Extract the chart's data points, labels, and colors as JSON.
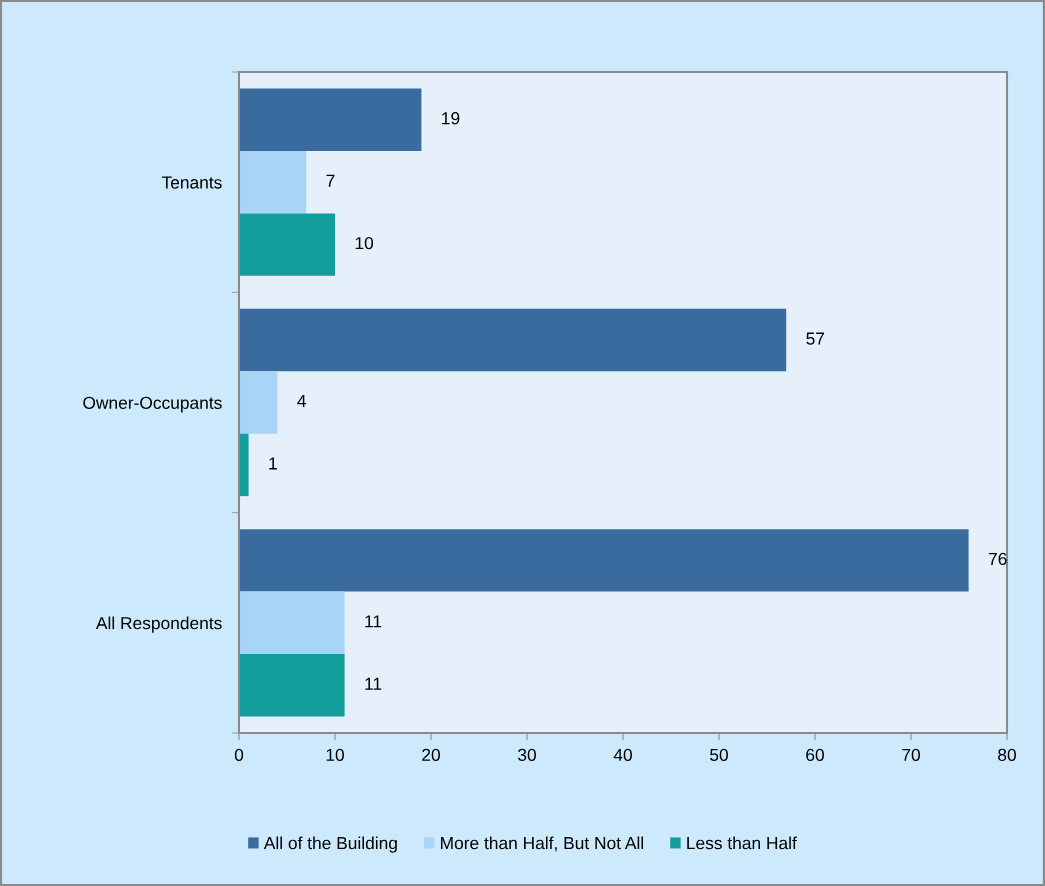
{
  "chart_data": {
    "type": "bar",
    "orientation": "horizontal",
    "categories": [
      "Tenants",
      "Owner-Occupants",
      "All Respondents"
    ],
    "series": [
      {
        "name": "All of the Building",
        "color": "#3a6b9e",
        "values": [
          19,
          57,
          76
        ]
      },
      {
        "name": "More than Half, But Not All",
        "color": "#a8d4f8",
        "values": [
          7,
          4,
          11
        ]
      },
      {
        "name": "Less than Half",
        "color": "#139e9c",
        "values": [
          10,
          1,
          11
        ]
      }
    ],
    "xlim": [
      0,
      80
    ],
    "xticks": [
      0,
      10,
      20,
      30,
      40,
      50,
      60,
      70,
      80
    ],
    "data_labels": true,
    "legend": "bottom",
    "grid": false
  }
}
